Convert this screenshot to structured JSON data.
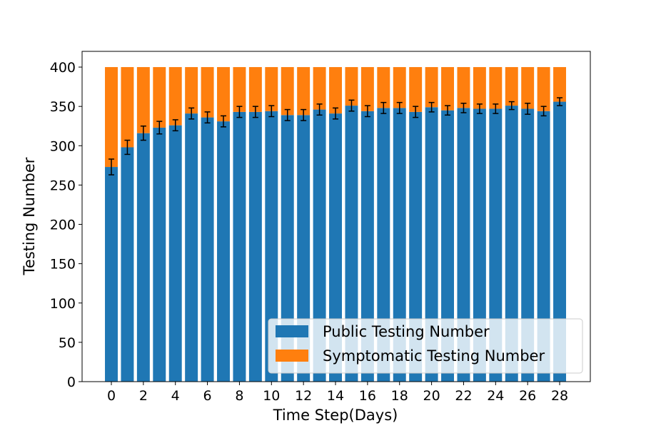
{
  "chart_data": {
    "type": "bar",
    "stacked": true,
    "xlabel": "Time Step(Days)",
    "ylabel": "Testing Number",
    "ylim": [
      0,
      420
    ],
    "yticks": [
      0,
      50,
      100,
      150,
      200,
      250,
      300,
      350,
      400
    ],
    "xticks": [
      0,
      2,
      4,
      6,
      8,
      10,
      12,
      14,
      16,
      18,
      20,
      22,
      24,
      26,
      28
    ],
    "x": [
      0,
      1,
      2,
      3,
      4,
      5,
      6,
      7,
      8,
      9,
      10,
      11,
      12,
      13,
      14,
      15,
      16,
      17,
      18,
      19,
      20,
      21,
      22,
      23,
      24,
      25,
      26,
      27,
      28
    ],
    "grid": false,
    "legend_position": "lower-right",
    "total": 400,
    "series": [
      {
        "name": "Public Testing Number",
        "color": "#1f77b4",
        "values": [
          273,
          298,
          316,
          323,
          326,
          341,
          336,
          331,
          343,
          343,
          344,
          339,
          339,
          346,
          341,
          351,
          344,
          348,
          348,
          343,
          349,
          345,
          348,
          347,
          347,
          351,
          347,
          344,
          356
        ],
        "error": [
          10,
          9,
          9,
          8,
          7,
          7,
          7,
          7,
          7,
          7,
          7,
          7,
          7,
          7,
          7,
          7,
          7,
          7,
          7,
          7,
          6,
          6,
          6,
          6,
          6,
          5,
          7,
          6,
          5
        ]
      },
      {
        "name": "Symptomatic Testing Number",
        "color": "#ff7f0e",
        "values": [
          127,
          102,
          84,
          77,
          74,
          59,
          64,
          69,
          57,
          57,
          56,
          61,
          61,
          54,
          59,
          49,
          56,
          52,
          52,
          57,
          51,
          55,
          52,
          53,
          53,
          49,
          53,
          56,
          44
        ]
      }
    ]
  }
}
